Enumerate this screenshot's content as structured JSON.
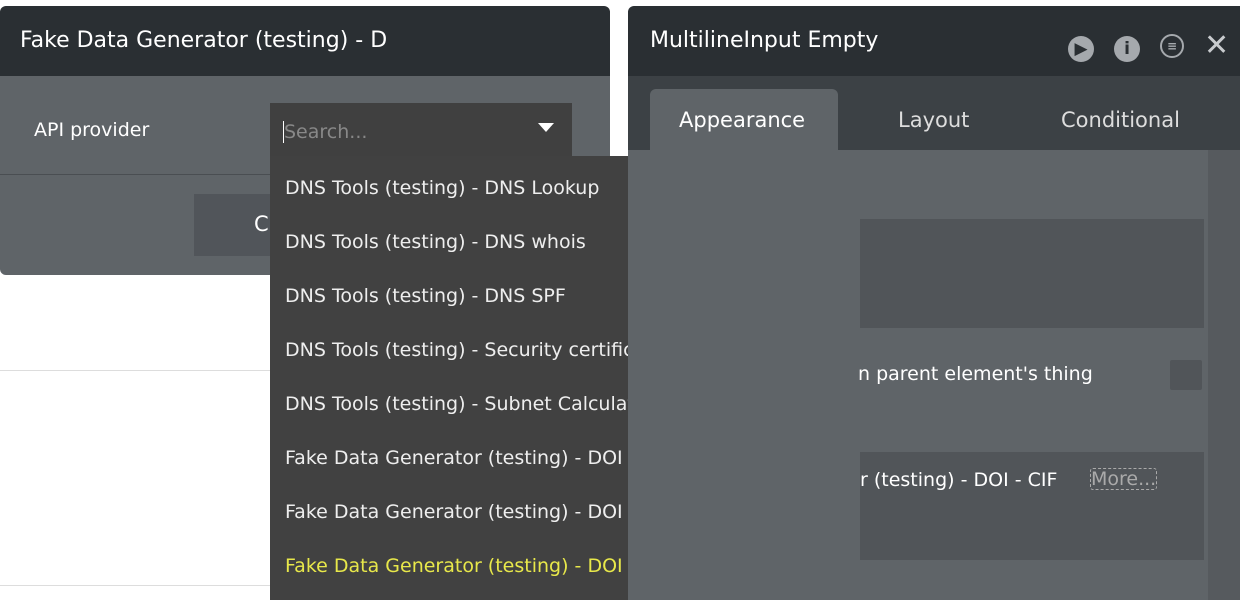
{
  "left_panel": {
    "title": "Fake Data Generator (testing) - D",
    "api_label": "API provider",
    "search_placeholder": "Search...",
    "button_label": "C"
  },
  "dropdown": {
    "items": [
      "DNS Tools (testing) - DNS Lookup",
      "DNS Tools (testing) - DNS whois",
      "DNS Tools (testing) - DNS SPF",
      "DNS Tools (testing) - Security certificate",
      "DNS Tools (testing) - Subnet Calculator",
      "Fake Data Generator (testing) - DOI - NIF",
      "Fake Data Generator (testing) - DOI - NIE",
      "Fake Data Generator (testing) - DOI - CIF"
    ],
    "highlight_color": "#e8e84a"
  },
  "right_panel": {
    "title": "MultilineInput Empty",
    "tabs": [
      "Appearance",
      "Layout",
      "Conditional"
    ],
    "active_tab": "Appearance",
    "parent_label": "n parent element's thing",
    "value_text": "r (testing) - DOI - CIF",
    "more_label": "More...",
    "icons": [
      "play-icon",
      "info-icon",
      "comment-icon",
      "close-icon"
    ]
  }
}
